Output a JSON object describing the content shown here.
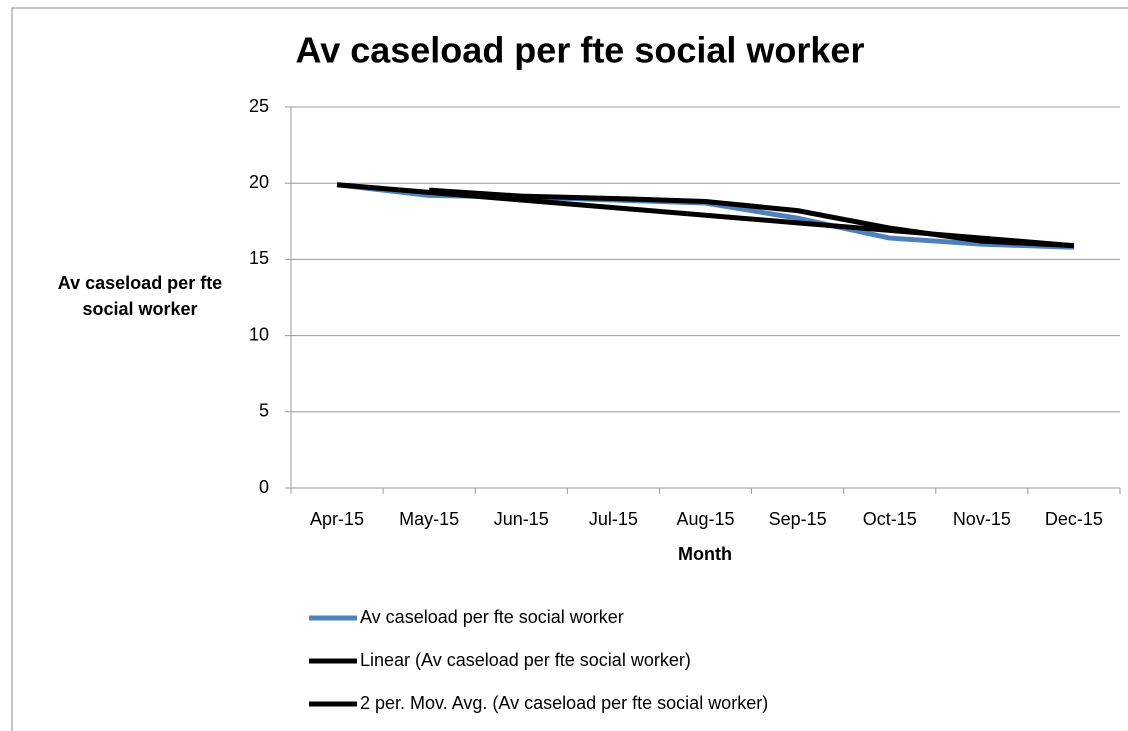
{
  "chart_data": {
    "type": "line",
    "title": "Av caseload per fte social worker",
    "x_label": "Month",
    "y_label": "Av caseload per fte social worker",
    "categories": [
      "Apr-15",
      "May-15",
      "Jun-15",
      "Jul-15",
      "Aug-15",
      "Sep-15",
      "Oct-15",
      "Nov-15",
      "Dec-15"
    ],
    "series": [
      {
        "name": "Av caseload per fte social worker",
        "color": "#4f81bd",
        "values": [
          19.9,
          19.2,
          19.1,
          18.9,
          18.7,
          17.7,
          16.4,
          16.0,
          15.8
        ]
      },
      {
        "name": "Linear (Av caseload per fte social worker)",
        "color": "#000000",
        "values": [
          19.9,
          19.4,
          18.9,
          18.4,
          17.9,
          17.4,
          16.9,
          16.4,
          15.9
        ]
      },
      {
        "name": "2 per. Mov. Avg. (Av caseload per fte social worker)",
        "color": "#000000",
        "values": [
          null,
          19.55,
          19.15,
          19.0,
          18.8,
          18.2,
          17.05,
          16.2,
          15.9
        ]
      }
    ],
    "ylim": [
      0,
      25
    ],
    "yticks": [
      0,
      5,
      10,
      15,
      20,
      25
    ],
    "grid": true,
    "legend": "bottom"
  }
}
